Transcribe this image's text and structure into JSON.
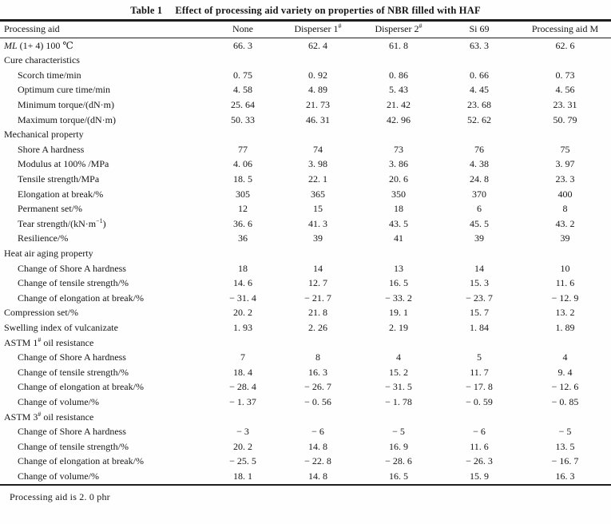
{
  "table": {
    "caption_label": "Table 1",
    "caption_text": "Effect of processing aid variety on properties of NBR filled with HAF",
    "footnote": "Processing aid is 2. 0 phr",
    "header": [
      {
        "parts": [
          {
            "t": "Processing aid"
          }
        ]
      },
      {
        "parts": [
          {
            "t": "None"
          }
        ]
      },
      {
        "parts": [
          {
            "t": "Disperser 1"
          },
          {
            "t": "#",
            "sup": true
          }
        ]
      },
      {
        "parts": [
          {
            "t": "Disperser 2"
          },
          {
            "t": "#",
            "sup": true
          }
        ]
      },
      {
        "parts": [
          {
            "t": "Si 69"
          }
        ]
      },
      {
        "parts": [
          {
            "t": "Processing aid M"
          }
        ]
      }
    ],
    "rows": [
      {
        "indent": false,
        "label": [
          {
            "t": "ML",
            "it": true
          },
          {
            "t": " (1+ 4) 100 ℃"
          }
        ],
        "values": [
          "66. 3",
          "62. 4",
          "61. 8",
          "63. 3",
          "62. 6"
        ]
      },
      {
        "section": true,
        "label": [
          {
            "t": "Cure characteristics"
          }
        ],
        "values": []
      },
      {
        "indent": true,
        "label": [
          {
            "t": "Scorch time/min"
          }
        ],
        "values": [
          "0. 75",
          "0. 92",
          "0. 86",
          "0. 66",
          "0. 73"
        ]
      },
      {
        "indent": true,
        "label": [
          {
            "t": "Optimum cure time/min"
          }
        ],
        "values": [
          "4. 58",
          "4. 89",
          "5. 43",
          "4. 45",
          "4. 56"
        ]
      },
      {
        "indent": true,
        "label": [
          {
            "t": "Minimum torque/(dN·m)"
          }
        ],
        "values": [
          "25. 64",
          "21. 73",
          "21. 42",
          "23. 68",
          "23. 31"
        ]
      },
      {
        "indent": true,
        "label": [
          {
            "t": "Maximum torque/(dN·m)"
          }
        ],
        "values": [
          "50. 33",
          "46. 31",
          "42. 96",
          "52. 62",
          "50. 79"
        ]
      },
      {
        "section": true,
        "label": [
          {
            "t": "Mechanical property"
          }
        ],
        "values": []
      },
      {
        "indent": true,
        "label": [
          {
            "t": "Shore A hardness"
          }
        ],
        "values": [
          "77",
          "74",
          "73",
          "76",
          "75"
        ]
      },
      {
        "indent": true,
        "label": [
          {
            "t": "Modulus at 100% /MPa"
          }
        ],
        "values": [
          "4. 06",
          "3. 98",
          "3. 86",
          "4. 38",
          "3. 97"
        ]
      },
      {
        "indent": true,
        "label": [
          {
            "t": "Tensile strength/MPa"
          }
        ],
        "values": [
          "18. 5",
          "22. 1",
          "20. 6",
          "24. 8",
          "23. 3"
        ]
      },
      {
        "indent": true,
        "label": [
          {
            "t": "Elongation at break/%"
          }
        ],
        "values": [
          "305",
          "365",
          "350",
          "370",
          "400"
        ]
      },
      {
        "indent": true,
        "label": [
          {
            "t": "Permanent set/%"
          }
        ],
        "values": [
          "12",
          "15",
          "18",
          "6",
          "8"
        ]
      },
      {
        "indent": true,
        "label": [
          {
            "t": "Tear strength/(kN·m"
          },
          {
            "t": "−1",
            "sup": true
          },
          {
            "t": ")"
          }
        ],
        "values": [
          "36. 6",
          "41. 3",
          "43. 5",
          "45. 5",
          "43. 2"
        ]
      },
      {
        "indent": true,
        "label": [
          {
            "t": "Resilience/%"
          }
        ],
        "values": [
          "36",
          "39",
          "41",
          "39",
          "39"
        ]
      },
      {
        "section": true,
        "label": [
          {
            "t": "Heat air aging property"
          }
        ],
        "values": []
      },
      {
        "indent": true,
        "label": [
          {
            "t": "Change of Shore A hardness"
          }
        ],
        "values": [
          "18",
          "14",
          "13",
          "14",
          "10"
        ]
      },
      {
        "indent": true,
        "label": [
          {
            "t": "Change of tensile strength/%"
          }
        ],
        "values": [
          "14. 6",
          "12. 7",
          "16. 5",
          "15. 3",
          "11. 6"
        ]
      },
      {
        "indent": true,
        "label": [
          {
            "t": "Change of elongation at break/%"
          }
        ],
        "values": [
          "− 31. 4",
          "− 21. 7",
          "− 33. 2",
          "− 23. 7",
          "− 12. 9"
        ]
      },
      {
        "indent": false,
        "label": [
          {
            "t": "Compression set/%"
          }
        ],
        "values": [
          "20. 2",
          "21. 8",
          "19. 1",
          "15. 7",
          "13. 2"
        ]
      },
      {
        "indent": false,
        "label": [
          {
            "t": "Swelling index of vulcanizate"
          }
        ],
        "values": [
          "1. 93",
          "2. 26",
          "2. 19",
          "1. 84",
          "1. 89"
        ]
      },
      {
        "section": true,
        "label": [
          {
            "t": "ASTM 1"
          },
          {
            "t": "#",
            "sup": true
          },
          {
            "t": " oil resistance"
          }
        ],
        "values": []
      },
      {
        "indent": true,
        "label": [
          {
            "t": "Change of Shore A hardness"
          }
        ],
        "values": [
          "7",
          "8",
          "4",
          "5",
          "4"
        ]
      },
      {
        "indent": true,
        "label": [
          {
            "t": "Change of tensile strength/%"
          }
        ],
        "values": [
          "18. 4",
          "16. 3",
          "15. 2",
          "11. 7",
          "9. 4"
        ]
      },
      {
        "indent": true,
        "label": [
          {
            "t": "Change of elongation at break/%"
          }
        ],
        "values": [
          "− 28. 4",
          "− 26. 7",
          "− 31. 5",
          "− 17. 8",
          "− 12. 6"
        ]
      },
      {
        "indent": true,
        "label": [
          {
            "t": "Change of volume/%"
          }
        ],
        "values": [
          "− 1. 37",
          "− 0. 56",
          "− 1. 78",
          "− 0. 59",
          "− 0. 85"
        ]
      },
      {
        "section": true,
        "label": [
          {
            "t": "ASTM 3"
          },
          {
            "t": "#",
            "sup": true
          },
          {
            "t": " oil resistance"
          }
        ],
        "values": []
      },
      {
        "indent": true,
        "label": [
          {
            "t": "Change of Shore A hardness"
          }
        ],
        "values": [
          "− 3",
          "− 6",
          "− 5",
          "− 6",
          "− 5"
        ]
      },
      {
        "indent": true,
        "label": [
          {
            "t": "Change of tensile strength/%"
          }
        ],
        "values": [
          "20. 2",
          "14. 8",
          "16. 9",
          "11. 6",
          "13. 5"
        ]
      },
      {
        "indent": true,
        "label": [
          {
            "t": "Change of elongation at break/%"
          }
        ],
        "values": [
          "− 25. 5",
          "− 22. 8",
          "− 28. 6",
          "− 26. 3",
          "− 16. 7"
        ]
      },
      {
        "indent": true,
        "label": [
          {
            "t": "Change of volume/%"
          }
        ],
        "values": [
          "18. 1",
          "14. 8",
          "16. 5",
          "15. 9",
          "16. 3"
        ]
      }
    ]
  }
}
